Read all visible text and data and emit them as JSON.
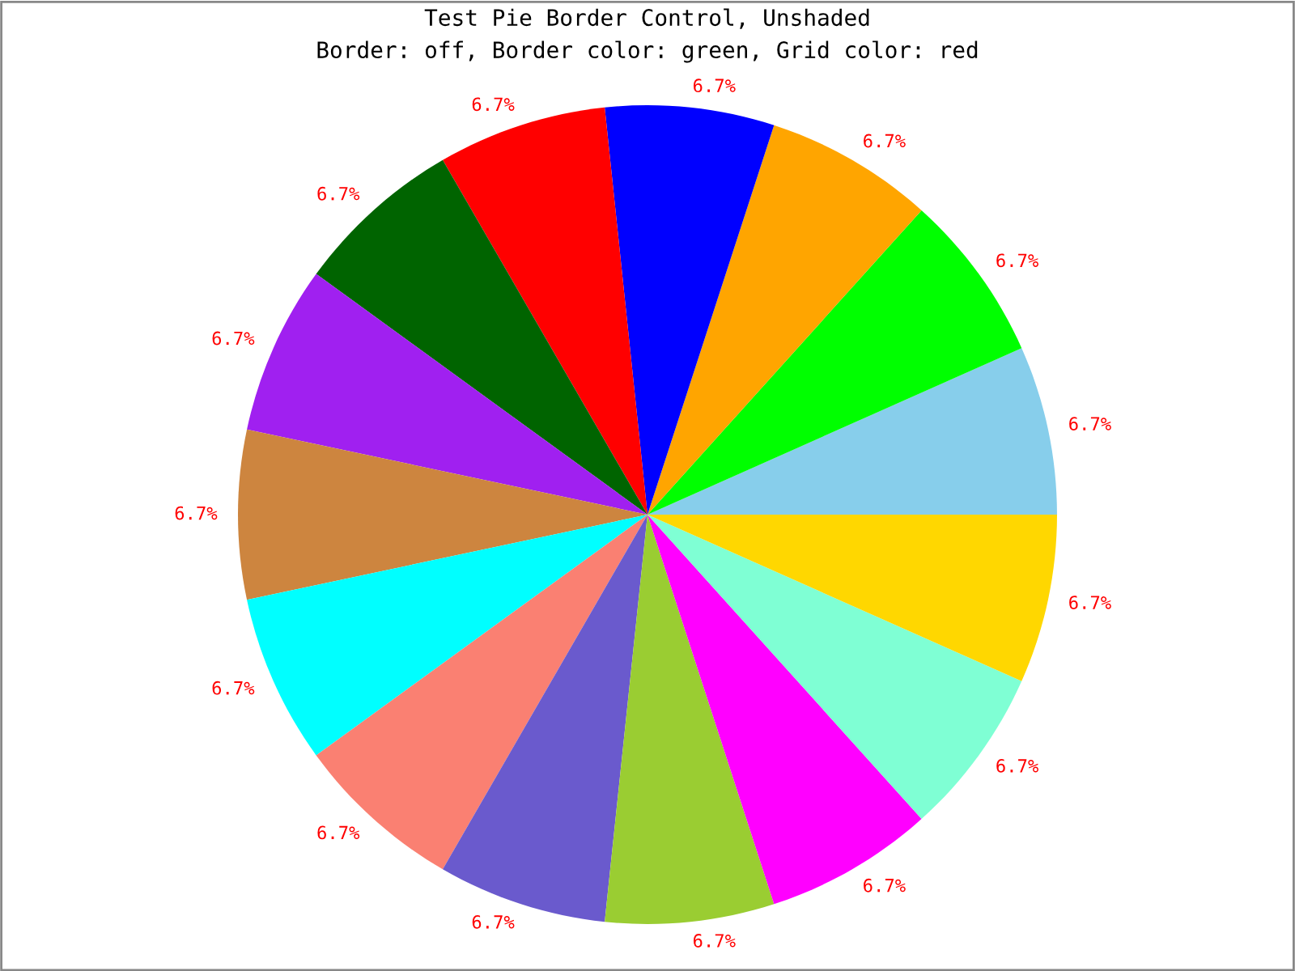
{
  "chart_data": {
    "type": "pie",
    "title": "Test Pie Border Control, Unshaded",
    "subtitle": "Border: off, Border color: green, Grid color: red",
    "categories": [
      null,
      null,
      null,
      null,
      null,
      null,
      null,
      null,
      null,
      null,
      null,
      null,
      null,
      null,
      null
    ],
    "values": [
      6.7,
      6.7,
      6.7,
      6.7,
      6.7,
      6.7,
      6.7,
      6.7,
      6.7,
      6.7,
      6.7,
      6.7,
      6.7,
      6.7,
      6.7
    ],
    "value_labels": [
      "6.7%",
      "6.7%",
      "6.7%",
      "6.7%",
      "6.7%",
      "6.7%",
      "6.7%",
      "6.7%",
      "6.7%",
      "6.7%",
      "6.7%",
      "6.7%",
      "6.7%",
      "6.7%",
      "6.7%"
    ],
    "colors": [
      "#87ceeb",
      "#00ff00",
      "#ffa500",
      "#0000ff",
      "#ff0000",
      "#006400",
      "#a020f0",
      "#cd853f",
      "#00ffff",
      "#fa8072",
      "#6a5acd",
      "#9acd32",
      "#ff00ff",
      "#7fffd4",
      "#ffd700"
    ]
  }
}
